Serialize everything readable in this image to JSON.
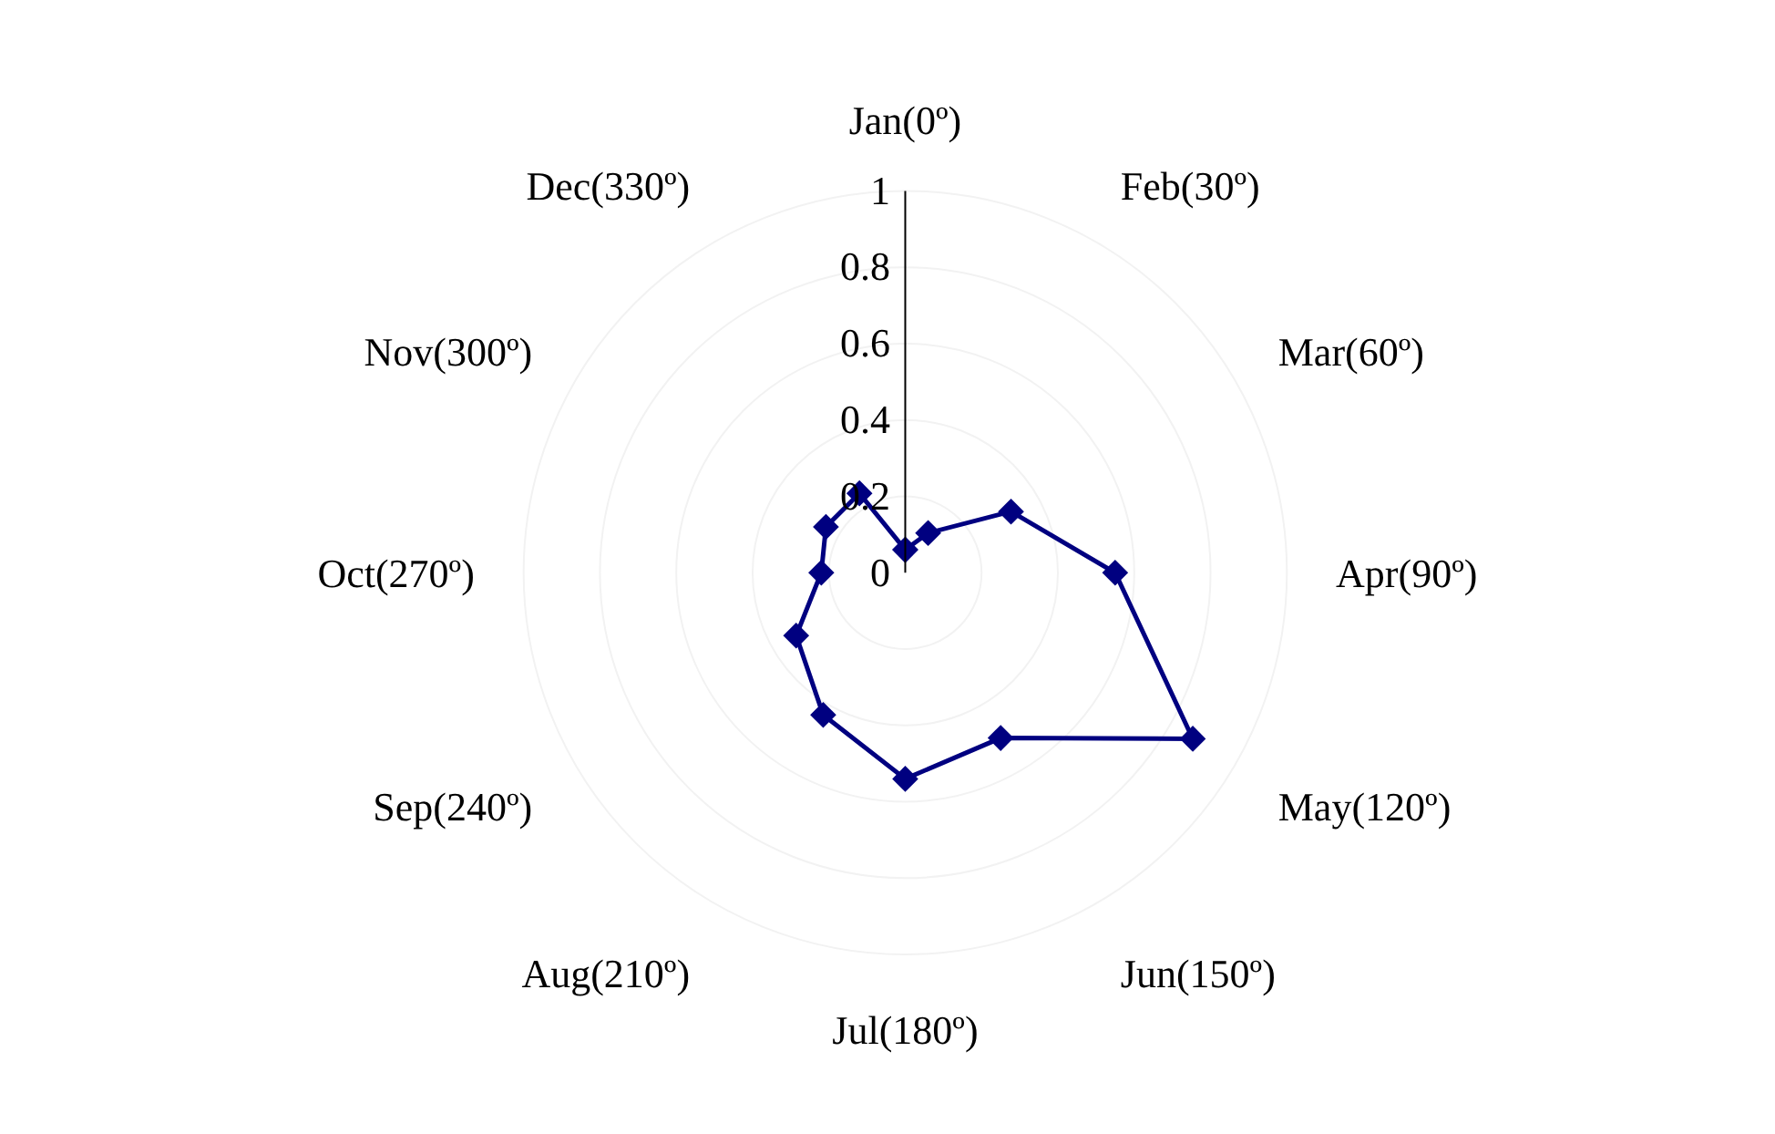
{
  "chart_data": {
    "type": "radar",
    "categories": [
      "Jan(0º)",
      "Feb(30º)",
      "Mar(60º)",
      "Apr(90º)",
      "May(120º)",
      "Jun(150º)",
      "Jul(180º)",
      "Aug(210º)",
      "Sep(240º)",
      "Oct(270º)",
      "Nov(300º)",
      "Dec(330º)"
    ],
    "series": [
      {
        "color": "#000080",
        "values": [
          0.06,
          0.12,
          0.32,
          0.55,
          0.87,
          0.5,
          0.54,
          0.43,
          0.33,
          0.22,
          0.24,
          0.24
        ]
      }
    ],
    "ylim": [
      0,
      1
    ],
    "yticks": [
      0,
      0.2,
      0.4,
      0.6,
      0.8,
      1
    ],
    "marker": "diamond",
    "line_style": "solid",
    "grid": "y"
  }
}
